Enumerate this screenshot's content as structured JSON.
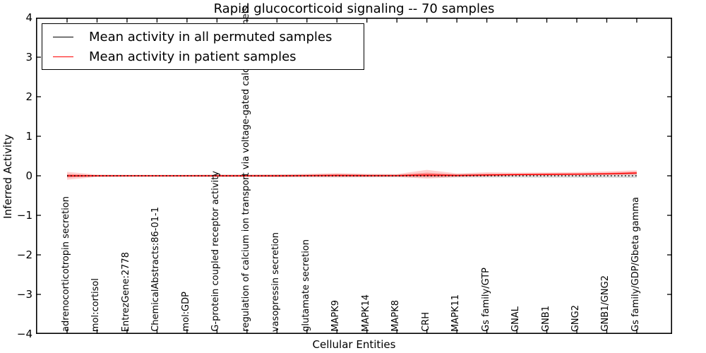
{
  "figure": {
    "title": "Rapid glucocorticoid signaling -- 70 samples"
  },
  "chart_data": {
    "type": "line",
    "title": "Rapid glucocorticoid signaling -- 70 samples",
    "xlabel": "Cellular Entities",
    "ylabel": "Inferred Activity",
    "ylim": [
      -4,
      4
    ],
    "ytick_labels": [
      "4",
      "3",
      "2",
      "1",
      "0",
      "−1",
      "−2",
      "−3",
      "−4"
    ],
    "grid": false,
    "legend_position": "upper left",
    "legend": [
      {
        "label": "Mean activity in all permuted samples",
        "color": "#000000"
      },
      {
        "label": "Mean activity in patient samples",
        "color": "#ff0000"
      }
    ],
    "categories": [
      "adrenocorticotropin secretion",
      "mol:cortisol",
      "EntrezGene:2778",
      "ChemicalAbstracts:86-01-1",
      "mol:GDP",
      "G-protein coupled receptor activity",
      "regulation of calcium ion transport via voltage-gated calcium channels",
      "vasopressin secretion",
      "glutamate secretion",
      "MAPK9",
      "MAPK14",
      "MAPK8",
      "CRH",
      "MAPK11",
      "Gs family/GTP",
      "GNAL",
      "GNB1",
      "GNG2",
      "GNB1/GNG2",
      "Gs family/GDP/Gbeta gamma"
    ],
    "series": [
      {
        "name": "Mean activity in all permuted samples",
        "color": "#000000",
        "linestyle": "dotted",
        "values": [
          0,
          0,
          0,
          0,
          0,
          0,
          0,
          0,
          0,
          0,
          0,
          0,
          0,
          0,
          0,
          0,
          0,
          0,
          0,
          0
        ],
        "band_halfwidth": [
          0.02,
          0.02,
          0.02,
          0.02,
          0.02,
          0.025,
          0.025,
          0.03,
          0.03,
          0.035,
          0.035,
          0.035,
          0.04,
          0.04,
          0.045,
          0.045,
          0.05,
          0.05,
          0.05,
          0.055
        ]
      },
      {
        "name": "Mean activity in patient samples",
        "color": "#ff0000",
        "linestyle": "solid",
        "values": [
          0,
          0,
          0,
          0,
          0,
          0,
          0,
          0,
          0.005,
          0.01,
          0.005,
          0.005,
          0.02,
          0.01,
          0.02,
          0.03,
          0.035,
          0.04,
          0.05,
          0.07
        ],
        "band_upper": [
          0.1,
          0.03,
          0.025,
          0.025,
          0.025,
          0.03,
          0.03,
          0.035,
          0.045,
          0.06,
          0.045,
          0.04,
          0.13,
          0.05,
          0.07,
          0.05,
          0.05,
          0.055,
          0.06,
          0.07
        ],
        "band_lower": [
          0.1,
          0.03,
          0.025,
          0.025,
          0.025,
          0.03,
          0.03,
          0.035,
          0.04,
          0.05,
          0.04,
          0.035,
          0.09,
          0.045,
          0.04,
          0.03,
          0.03,
          0.03,
          0.035,
          0.05
        ]
      }
    ]
  }
}
